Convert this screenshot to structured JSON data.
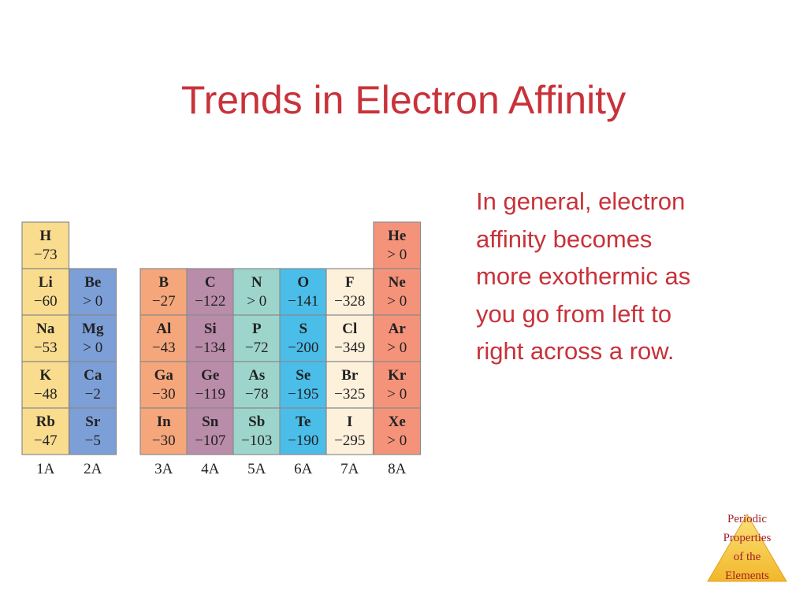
{
  "title": "Trends in Electron Affinity",
  "body": [
    "In general, electron",
    "affinity becomes",
    "more exothermic as",
    "you go from left to",
    "right across a row."
  ],
  "table": {
    "columns": [
      {
        "label": "1A",
        "cells": [
          {
            "symbol": "H",
            "value": "−73"
          },
          {
            "symbol": "Li",
            "value": "−60"
          },
          {
            "symbol": "Na",
            "value": "−53"
          },
          {
            "symbol": "K",
            "value": "−48"
          },
          {
            "symbol": "Rb",
            "value": "−47"
          }
        ]
      },
      {
        "label": "2A",
        "cells": [
          {
            "symbol": "Be",
            "value": "> 0"
          },
          {
            "symbol": "Mg",
            "value": "> 0"
          },
          {
            "symbol": "Ca",
            "value": "−2"
          },
          {
            "symbol": "Sr",
            "value": "−5"
          }
        ]
      },
      {
        "label": "3A",
        "cells": [
          {
            "symbol": "B",
            "value": "−27"
          },
          {
            "symbol": "Al",
            "value": "−43"
          },
          {
            "symbol": "Ga",
            "value": "−30"
          },
          {
            "symbol": "In",
            "value": "−30"
          }
        ]
      },
      {
        "label": "4A",
        "cells": [
          {
            "symbol": "C",
            "value": "−122"
          },
          {
            "symbol": "Si",
            "value": "−134"
          },
          {
            "symbol": "Ge",
            "value": "−119"
          },
          {
            "symbol": "Sn",
            "value": "−107"
          }
        ]
      },
      {
        "label": "5A",
        "cells": [
          {
            "symbol": "N",
            "value": "> 0"
          },
          {
            "symbol": "P",
            "value": "−72"
          },
          {
            "symbol": "As",
            "value": "−78"
          },
          {
            "symbol": "Sb",
            "value": "−103"
          }
        ]
      },
      {
        "label": "6A",
        "cells": [
          {
            "symbol": "O",
            "value": "−141"
          },
          {
            "symbol": "S",
            "value": "−200"
          },
          {
            "symbol": "Se",
            "value": "−195"
          },
          {
            "symbol": "Te",
            "value": "−190"
          }
        ]
      },
      {
        "label": "7A",
        "cells": [
          {
            "symbol": "F",
            "value": "−328"
          },
          {
            "symbol": "Cl",
            "value": "−349"
          },
          {
            "symbol": "Br",
            "value": "−325"
          },
          {
            "symbol": "I",
            "value": "−295"
          }
        ]
      },
      {
        "label": "8A",
        "cells": [
          {
            "symbol": "He",
            "value": "> 0"
          },
          {
            "symbol": "Ne",
            "value": "> 0"
          },
          {
            "symbol": "Ar",
            "value": "> 0"
          },
          {
            "symbol": "Kr",
            "value": "> 0"
          },
          {
            "symbol": "Xe",
            "value": "> 0"
          }
        ]
      }
    ]
  },
  "footer": [
    "Periodic",
    "Properties",
    "of the",
    "Elements"
  ]
}
